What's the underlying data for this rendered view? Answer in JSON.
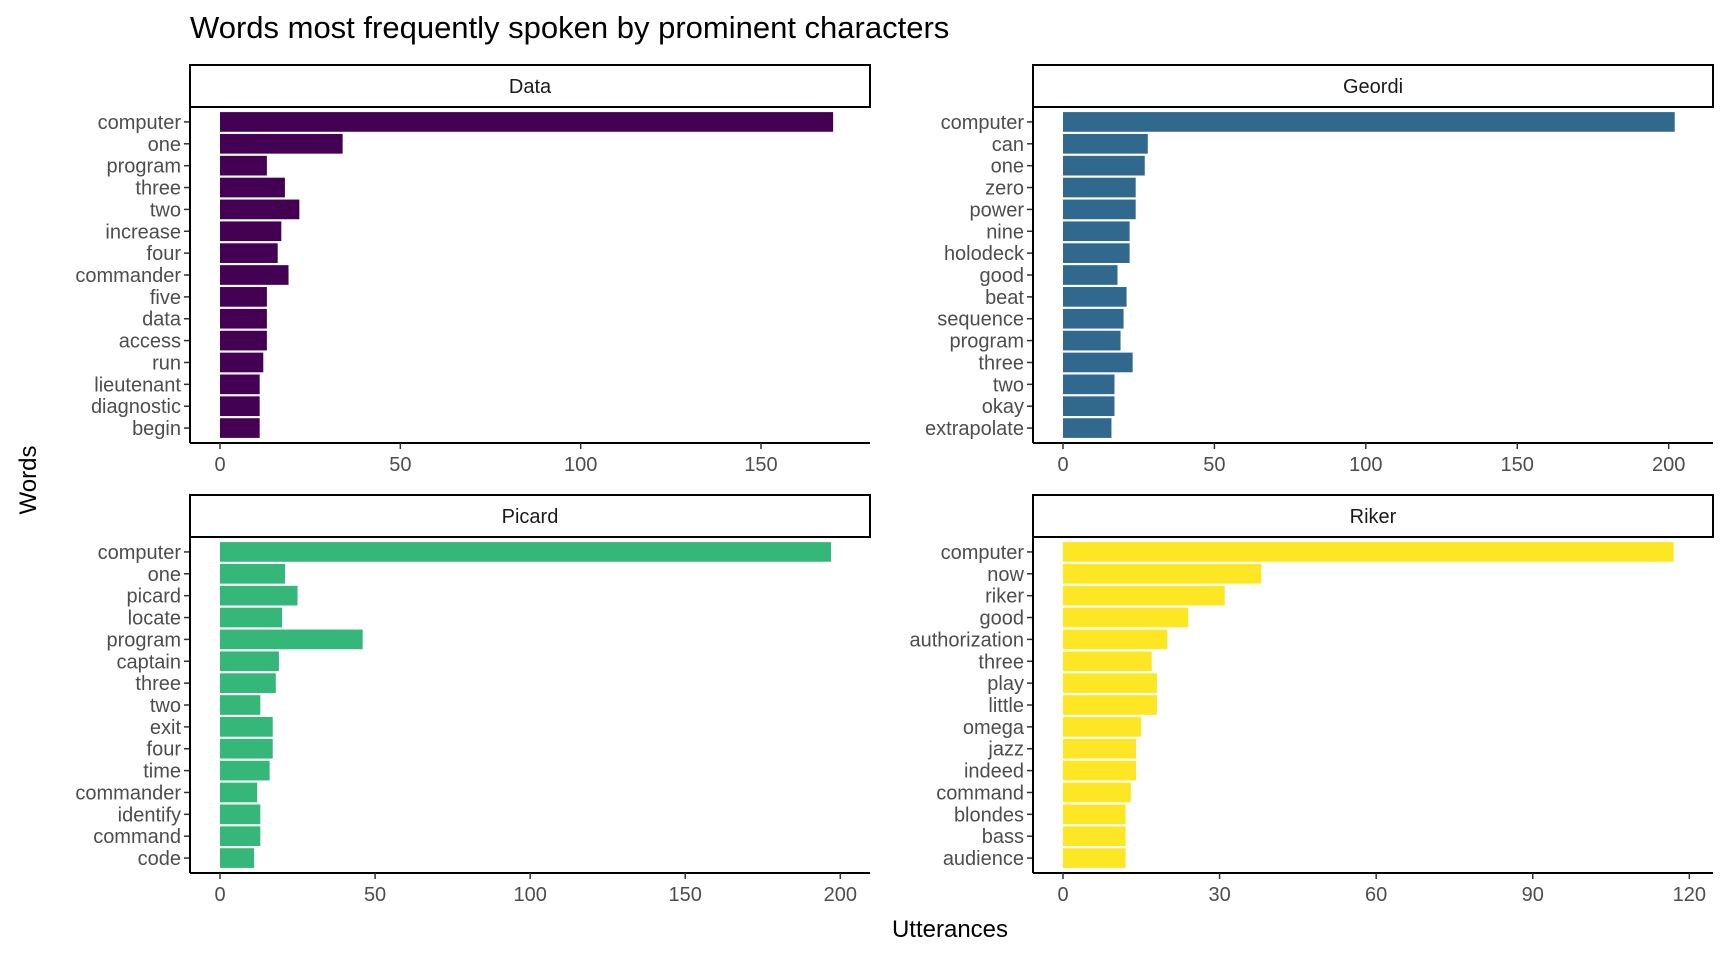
{
  "chart_data": {
    "type": "bar",
    "orientation": "horizontal",
    "title": "Words most frequently spoken by prominent characters",
    "xlabel": "Utterances",
    "ylabel": "Words",
    "grid": false,
    "legend": "none",
    "facets": [
      {
        "name": "Data",
        "color": "#440154",
        "xlim": [
          0,
          178
        ],
        "xticks": [
          0,
          50,
          100,
          150
        ],
        "categories": [
          "computer",
          "one",
          "program",
          "three",
          "two",
          "increase",
          "four",
          "commander",
          "five",
          "data",
          "access",
          "run",
          "lieutenant",
          "diagnostic",
          "begin"
        ],
        "values": [
          170,
          34,
          13,
          18,
          22,
          17,
          16,
          19,
          13,
          13,
          13,
          12,
          11,
          11,
          11
        ]
      },
      {
        "name": "Geordi",
        "color": "#31688E",
        "xlim": [
          0,
          212
        ],
        "xticks": [
          0,
          50,
          100,
          150,
          200
        ],
        "categories": [
          "computer",
          "can",
          "one",
          "zero",
          "power",
          "nine",
          "holodeck",
          "good",
          "beat",
          "sequence",
          "program",
          "three",
          "two",
          "okay",
          "extrapolate"
        ],
        "values": [
          202,
          28,
          27,
          24,
          24,
          22,
          22,
          18,
          21,
          20,
          19,
          23,
          17,
          17,
          16
        ]
      },
      {
        "name": "Picard",
        "color": "#35B779",
        "xlim": [
          0,
          207
        ],
        "xticks": [
          0,
          50,
          100,
          150,
          200
        ],
        "categories": [
          "computer",
          "one",
          "picard",
          "locate",
          "program",
          "captain",
          "three",
          "two",
          "exit",
          "four",
          "time",
          "commander",
          "identify",
          "command",
          "code"
        ],
        "values": [
          197,
          21,
          25,
          20,
          46,
          19,
          18,
          13,
          17,
          17,
          16,
          12,
          13,
          13,
          11
        ]
      },
      {
        "name": "Riker",
        "color": "#FDE725",
        "xlim": [
          0,
          123
        ],
        "xticks": [
          0,
          30,
          60,
          90,
          120
        ],
        "categories": [
          "computer",
          "now",
          "riker",
          "good",
          "authorization",
          "three",
          "play",
          "little",
          "omega",
          "jazz",
          "indeed",
          "command",
          "blondes",
          "bass",
          "audience"
        ],
        "values": [
          117,
          38,
          31,
          24,
          20,
          17,
          18,
          18,
          15,
          14,
          14,
          13,
          12,
          12,
          12
        ]
      }
    ]
  }
}
